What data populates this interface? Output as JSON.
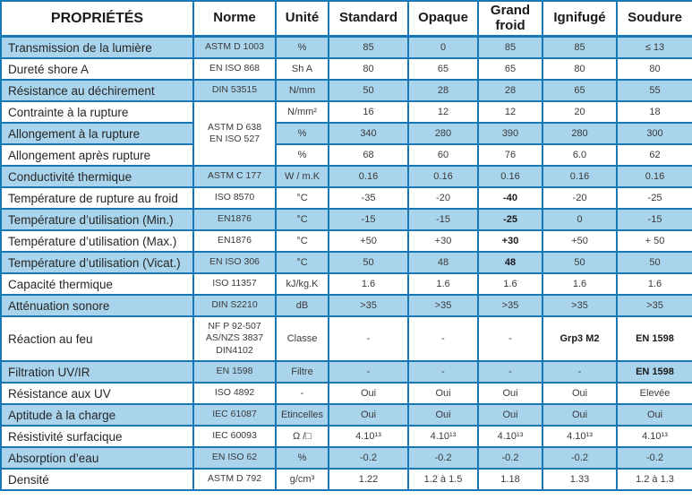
{
  "table": {
    "columns": [
      "PROPRIÉTÉS",
      "Norme",
      "Unité",
      "Standard",
      "Opaque",
      "Grand froid",
      "Ignifugé",
      "Soudure"
    ],
    "colors": {
      "border_blue": "#1778b5",
      "row_fill_blue": "#aad4ec",
      "header_text": "#1a1a1a",
      "body_text": "#3a3a3a"
    },
    "rows": [
      {
        "property": "Transmission de la lumière",
        "norme": [
          "ASTM D 1003"
        ],
        "unite": "%",
        "values": [
          "85",
          "0",
          "85",
          "85",
          "≤ 13"
        ],
        "shade": "blue"
      },
      {
        "property": "Dureté shore A",
        "norme": [
          "EN ISO 868"
        ],
        "unite": "Sh A",
        "values": [
          "80",
          "65",
          "65",
          "80",
          "80"
        ],
        "shade": "white"
      },
      {
        "property": "Résistance au déchirement",
        "norme": [
          "DIN 53515"
        ],
        "unite": "N/mm",
        "values": [
          "50",
          "28",
          "28",
          "65",
          "55"
        ],
        "shade": "blue"
      },
      {
        "property": "Contrainte à la rupture",
        "norme": [
          "ASTM D 638",
          "EN ISO 527"
        ],
        "norme_rowspan": 3,
        "unite": "N/mm²",
        "values": [
          "16",
          "12",
          "12",
          "20",
          "18"
        ],
        "shade": "white"
      },
      {
        "property": "Allongement à la rupture",
        "norme": null,
        "unite": "%",
        "values": [
          "340",
          "280",
          "390",
          "280",
          "300"
        ],
        "shade": "blue"
      },
      {
        "property": "Allongement après rupture",
        "norme": null,
        "unite": "%",
        "values": [
          "68",
          "60",
          "76",
          "6.0",
          "62"
        ],
        "shade": "white"
      },
      {
        "property": "Conductivité thermique",
        "norme": [
          "ASTM C 177"
        ],
        "unite": "W / m.K",
        "values": [
          "0.16",
          "0.16",
          "0.16",
          "0.16",
          "0.16"
        ],
        "shade": "blue"
      },
      {
        "property": "Température de rupture au froid",
        "norme": [
          "ISO 8570"
        ],
        "unite": "°C",
        "values": [
          "-35",
          "-20",
          "-40",
          "-20",
          "-25"
        ],
        "bold_values": [
          2
        ],
        "shade": "white"
      },
      {
        "property": "Température d’utilisation (Min.)",
        "norme": [
          "EN1876"
        ],
        "unite": "°C",
        "values": [
          "-15",
          "-15",
          "-25",
          "0",
          "-15"
        ],
        "bold_values": [
          2
        ],
        "shade": "blue"
      },
      {
        "property": "Température d’utilisation (Max.)",
        "norme": [
          "EN1876"
        ],
        "unite": "°C",
        "values": [
          "+50",
          "+30",
          "+30",
          "+50",
          "+ 50"
        ],
        "bold_values": [
          2
        ],
        "shade": "white"
      },
      {
        "property": "Température d’utilisation (Vicat.)",
        "norme": [
          "EN ISO 306"
        ],
        "unite": "°C",
        "values": [
          "50",
          "48",
          "48",
          "50",
          "50"
        ],
        "bold_values": [
          2
        ],
        "shade": "blue"
      },
      {
        "property": "Capacité thermique",
        "norme": [
          "ISO 11357"
        ],
        "unite": "kJ/kg.K",
        "values": [
          "1.6",
          "1.6",
          "1.6",
          "1.6",
          "1.6"
        ],
        "shade": "white"
      },
      {
        "property": "Atténuation sonore",
        "norme": [
          "DIN S2210"
        ],
        "unite": "dB",
        "values": [
          ">35",
          ">35",
          ">35",
          ">35",
          ">35"
        ],
        "shade": "blue"
      },
      {
        "property": "Réaction au feu",
        "norme": [
          "NF P 92-507",
          "AS/NZS 3837",
          "DIN4102"
        ],
        "unite": "Classe",
        "values": [
          "-",
          "-",
          "-",
          "Grp3 M2",
          "EN 1598"
        ],
        "bold_values": [
          3,
          4
        ],
        "tall": true,
        "shade": "white"
      },
      {
        "property": "Filtration UV/IR",
        "norme": [
          "EN 1598"
        ],
        "unite": "Filtre",
        "values": [
          "-",
          "-",
          "-",
          "-",
          "EN 1598"
        ],
        "bold_values": [
          4
        ],
        "shade": "blue"
      },
      {
        "property": "Résistance aux UV",
        "norme": [
          "ISO 4892"
        ],
        "unite": "-",
        "values": [
          "Oui",
          "Oui",
          "Oui",
          "Oui",
          "Elevée"
        ],
        "shade": "white"
      },
      {
        "property": "Aptitude à la charge",
        "norme": [
          "IEC 61087"
        ],
        "unite": "Etincelles",
        "values": [
          "Oui",
          "Oui",
          "Oui",
          "Oui",
          "Oui"
        ],
        "shade": "blue"
      },
      {
        "property": "Résistivité surfacique",
        "norme": [
          "IEC 60093"
        ],
        "unite": "Ω /□",
        "values": [
          "4.10¹³",
          "4.10¹³",
          "4.10¹³",
          "4.10¹³",
          "4.10¹³"
        ],
        "shade": "white"
      },
      {
        "property": "Absorption d’eau",
        "norme": [
          "EN ISO 62"
        ],
        "unite": "%",
        "values": [
          "-0.2",
          "-0.2",
          "-0.2",
          "-0.2",
          "-0.2"
        ],
        "shade": "blue"
      },
      {
        "property": "Densité",
        "norme": [
          "ASTM D 792"
        ],
        "unite": "g/cm³",
        "values": [
          "1.22",
          "1.2 à 1.5",
          "1.18",
          "1.33",
          "1.2 à 1.3"
        ],
        "shade": "white"
      }
    ]
  }
}
